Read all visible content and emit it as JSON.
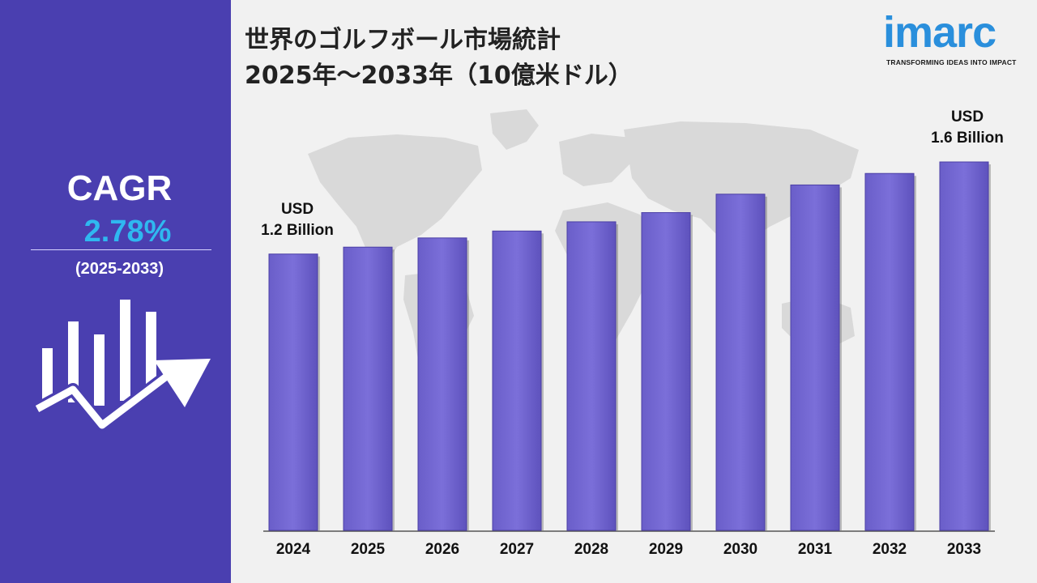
{
  "sidebar": {
    "cagr_label": "CAGR",
    "cagr_value": "2.78%",
    "cagr_period": "(2025-2033)",
    "background_color": "#4a3fb0",
    "value_color": "#2fb8f0",
    "icon": "growth-chart-arrow-icon"
  },
  "header": {
    "title_line1": "世界のゴルフボール市場統計",
    "title_line2": "2025年〜2033年（10億米ドル）"
  },
  "logo": {
    "word": "imarc",
    "tagline": "TRANSFORMING IDEAS INTO IMPACT",
    "color": "#2a8fdc"
  },
  "chart_data": {
    "type": "bar",
    "categories": [
      "2024",
      "2025",
      "2026",
      "2027",
      "2028",
      "2029",
      "2030",
      "2031",
      "2032",
      "2033"
    ],
    "values": [
      1.2,
      1.23,
      1.27,
      1.3,
      1.34,
      1.38,
      1.46,
      1.5,
      1.55,
      1.6
    ],
    "ylim": [
      0,
      1.6
    ],
    "bar_color": "#7b6fd9",
    "annotations": [
      {
        "category": "2024",
        "line1": "USD",
        "line2": "1.2 Billion"
      },
      {
        "category": "2033",
        "line1": "USD",
        "line2": "1.6 Billion"
      }
    ],
    "background": "world-map"
  }
}
